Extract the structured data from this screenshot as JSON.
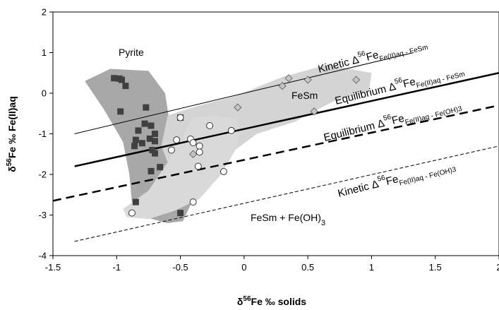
{
  "chart_data": {
    "type": "scatter",
    "xlabel": "δ56Fe ‰ solids",
    "ylabel": "δ56Fe ‰ Fe(II)aq",
    "xlim": [
      -1.5,
      2
    ],
    "ylim": [
      -4,
      2
    ],
    "x_ticks": [
      "-1.5",
      "-1",
      "-0.5",
      "0",
      "0.5",
      "1",
      "1.5",
      "2"
    ],
    "y_ticks": [
      "-4",
      "-3",
      "-2",
      "-1",
      "0",
      "1",
      "2"
    ],
    "x_tick_values": [
      -1.5,
      -1,
      -0.5,
      0,
      0.5,
      1,
      1.5,
      2
    ],
    "y_tick_values": [
      -4,
      -3,
      -2,
      -1,
      0,
      1,
      2
    ],
    "colors": {
      "pyrite_region": "#a8a8a8",
      "fesm_region": "#d4d4d4",
      "fesm_feoh_region": "#d9d9d9",
      "pyrite_marker": "#404040",
      "fesm_marker": "#c4c4c4"
    },
    "regions": [
      {
        "label": "Pyrite",
        "color": "pyrite_region",
        "polygon": [
          [
            -1.25,
            0.3
          ],
          [
            -1.05,
            0.6
          ],
          [
            -0.75,
            0.55
          ],
          [
            -0.62,
            0.0
          ],
          [
            -0.58,
            -0.8
          ],
          [
            -0.52,
            -1.5
          ],
          [
            -0.5,
            -2.3
          ],
          [
            -0.42,
            -2.75
          ],
          [
            -0.48,
            -3.15
          ],
          [
            -0.6,
            -3.2
          ],
          [
            -0.78,
            -3.05
          ],
          [
            -0.88,
            -2.7
          ],
          [
            -0.9,
            -2.0
          ],
          [
            -0.95,
            -1.2
          ],
          [
            -1.1,
            -0.4
          ]
        ]
      },
      {
        "label": "FeSm",
        "color": "fesm_region",
        "polygon": [
          [
            -0.65,
            -1.3
          ],
          [
            -0.6,
            -0.55
          ],
          [
            -0.35,
            -0.3
          ],
          [
            -0.05,
            -0.05
          ],
          [
            0.3,
            0.4
          ],
          [
            0.65,
            0.7
          ],
          [
            1.0,
            0.5
          ],
          [
            0.98,
            0.05
          ],
          [
            0.7,
            -0.2
          ],
          [
            0.4,
            -0.7
          ],
          [
            0.1,
            -1.0
          ],
          [
            -0.2,
            -1.7
          ],
          [
            -0.45,
            -1.85
          ],
          [
            -0.6,
            -1.7
          ]
        ]
      },
      {
        "label": "FeSm + Fe(OH)3",
        "color": "fesm_feoh_region",
        "polygon": [
          [
            -0.95,
            -2.85
          ],
          [
            -0.75,
            -2.4
          ],
          [
            -0.6,
            -1.7
          ],
          [
            -0.4,
            -0.6
          ],
          [
            -0.2,
            -0.55
          ],
          [
            -0.05,
            -0.65
          ],
          [
            -0.05,
            -1.3
          ],
          [
            -0.18,
            -2.0
          ],
          [
            -0.35,
            -2.6
          ],
          [
            -0.55,
            -2.9
          ],
          [
            -0.75,
            -3.1
          ],
          [
            -0.92,
            -3.05
          ]
        ]
      }
    ],
    "series": [
      {
        "name": "Pyrite",
        "marker": "square",
        "points": [
          [
            -1.02,
            0.37
          ],
          [
            -0.98,
            0.36
          ],
          [
            -0.96,
            0.33
          ],
          [
            -0.93,
            0.18
          ],
          [
            -0.97,
            -0.45
          ],
          [
            -0.77,
            -0.35
          ],
          [
            -0.78,
            -0.75
          ],
          [
            -0.83,
            -0.92
          ],
          [
            -0.73,
            -0.8
          ],
          [
            -0.7,
            -1.0
          ],
          [
            -0.85,
            -1.15
          ],
          [
            -0.74,
            -1.12
          ],
          [
            -0.7,
            -1.18
          ],
          [
            -0.8,
            -1.23
          ],
          [
            -0.86,
            -1.3
          ],
          [
            -0.72,
            -1.4
          ],
          [
            -0.7,
            -1.48
          ],
          [
            -0.66,
            -1.82
          ],
          [
            -0.73,
            -1.92
          ],
          [
            -0.85,
            -2.68
          ],
          [
            -0.5,
            -2.95
          ],
          [
            -0.5,
            -0.6
          ]
        ]
      },
      {
        "name": "FeSm",
        "marker": "diamond",
        "points": [
          [
            0.88,
            0.33
          ],
          [
            0.5,
            0.33
          ],
          [
            0.35,
            0.37
          ],
          [
            0.3,
            0.18
          ],
          [
            -0.05,
            -0.35
          ],
          [
            0.55,
            -0.45
          ],
          [
            -0.4,
            -1.5
          ]
        ]
      },
      {
        "name": "FeSm + Fe(OH)3",
        "marker": "circle",
        "points": [
          [
            -0.5,
            -0.6
          ],
          [
            -0.27,
            -0.8
          ],
          [
            -0.1,
            -0.92
          ],
          [
            -0.53,
            -1.15
          ],
          [
            -0.42,
            -1.13
          ],
          [
            -0.4,
            -1.22
          ],
          [
            -0.35,
            -1.3
          ],
          [
            -0.57,
            -1.4
          ],
          [
            -0.35,
            -1.45
          ],
          [
            -0.36,
            -1.8
          ],
          [
            -0.16,
            -1.93
          ],
          [
            -0.4,
            -2.68
          ],
          [
            -0.88,
            -2.95
          ]
        ]
      }
    ],
    "lines": [
      {
        "label": "Kinetic Δ56Fe Fe(II)aq - FeSm",
        "style": "thin",
        "from": [
          -1.33,
          -1.0
        ],
        "to": [
          1.33,
          1.0
        ]
      },
      {
        "label": "Equilibrium Δ56Fe Fe(II)aq - FeSm",
        "style": "thick",
        "from": [
          -1.33,
          -1.8
        ],
        "to": [
          2.0,
          0.5
        ]
      },
      {
        "label": "Equilibrium Δ56Fe Fe(II)aq - Fe(OH)3",
        "style": "thick-dashed",
        "from": [
          -1.5,
          -2.65
        ],
        "to": [
          2.0,
          -0.3
        ]
      },
      {
        "label": "Kinetic Δ56Fe Fe(II)aq - Fe(OH)3",
        "style": "thin-dashed",
        "from": [
          -1.33,
          -3.65
        ],
        "to": [
          2.0,
          -1.3
        ]
      }
    ],
    "region_labels": {
      "pyrite": "Pyrite",
      "fesm": "FeSm",
      "fesm_feoh3": "FeSm + Fe(OH)",
      "fesm_feoh3_sub": "3"
    },
    "line_labels": {
      "kinetic_fesm": {
        "prefix": "Kinetic Δ",
        "sup": "56",
        "mid": "Fe",
        "sub": "Fe(II)aq - FeSm"
      },
      "equilibrium_fesm": {
        "prefix": "Equilibrium Δ",
        "sup": "56",
        "mid": "Fe",
        "sub": "Fe(II)aq - FeSm"
      },
      "equilibrium_feoh3": {
        "prefix": "Equilibrium Δ",
        "sup": "56",
        "mid": "Fe",
        "sub": "Fe(II)aq - Fe(OH)3"
      },
      "kinetic_feoh3": {
        "prefix": "Kinetic Δ",
        "sup": "56",
        "mid": "Fe",
        "sub": "Fe(II)aq - Fe(OH)3"
      }
    },
    "axis_titles": {
      "x": {
        "pre": "δ",
        "sup": "56",
        "post": "Fe ‰ solids"
      },
      "y": {
        "pre": "δ",
        "sup": "56",
        "post": "Fe ‰ Fe(II)aq"
      }
    },
    "grid": false,
    "legend": "none"
  }
}
